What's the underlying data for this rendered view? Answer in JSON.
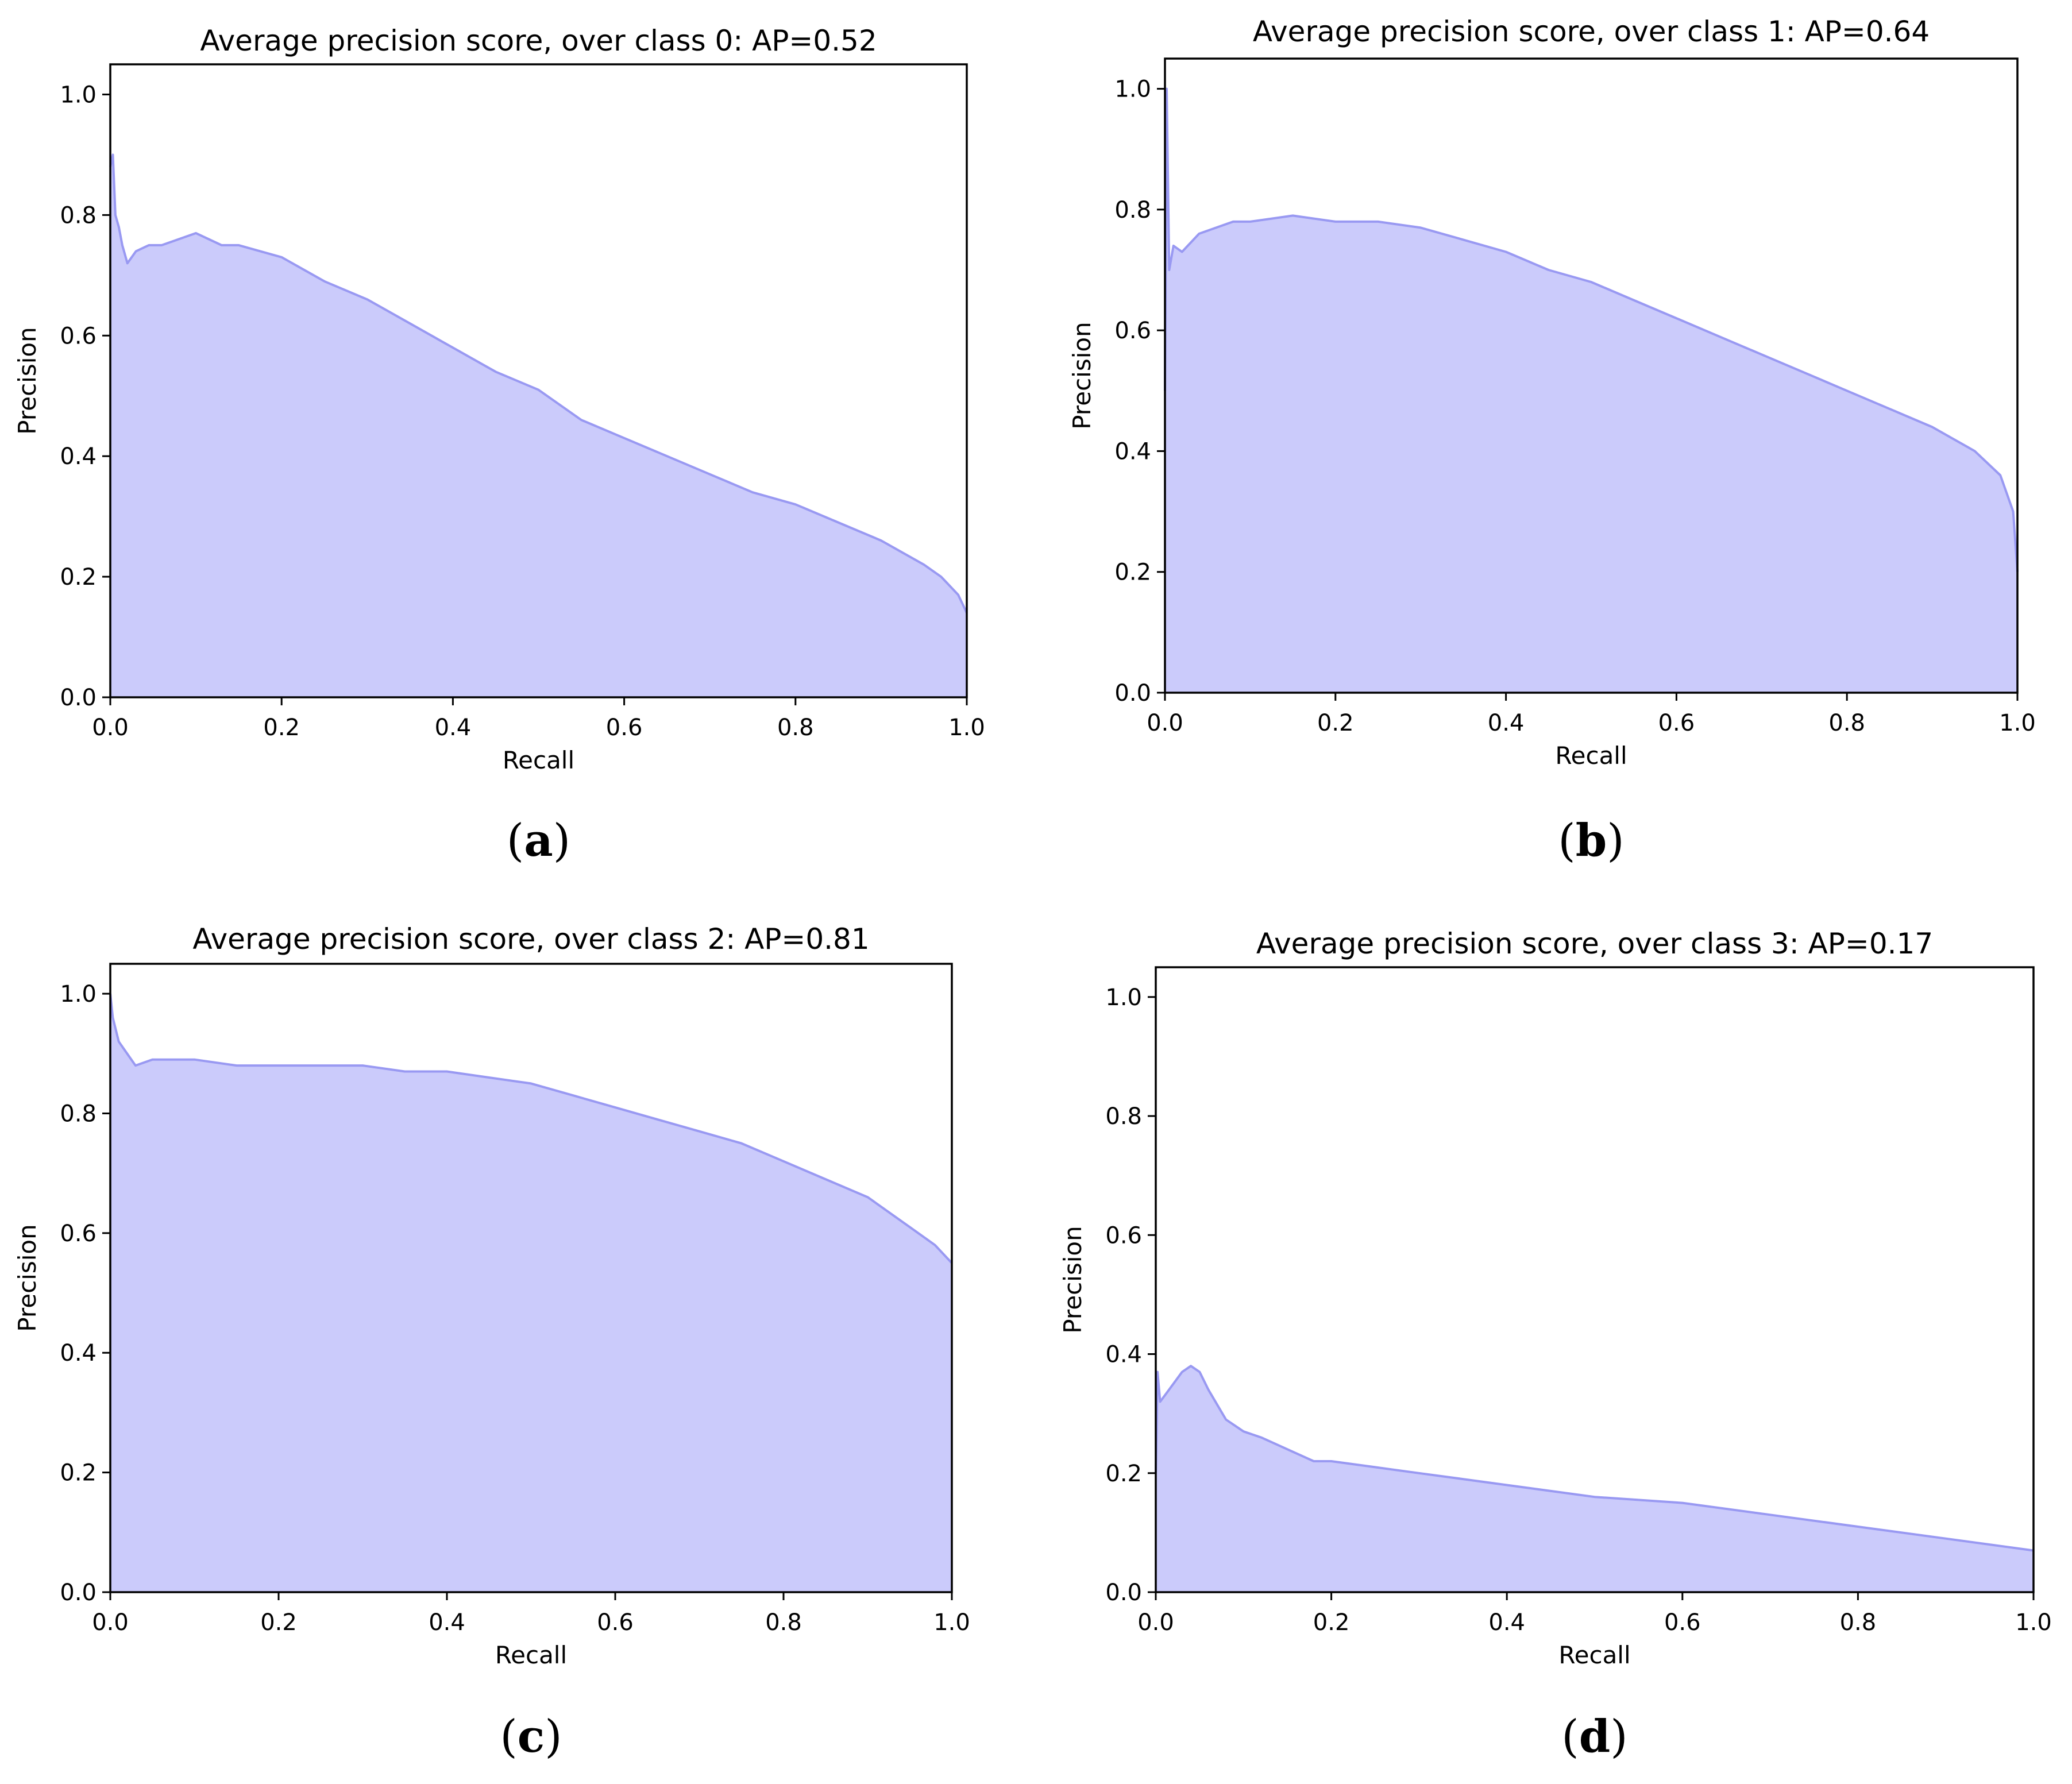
{
  "figure": {
    "colors": {
      "fill": "#cbcbfb",
      "line": "#9999f2",
      "frame": "#000000"
    }
  },
  "chart_data": [
    {
      "type": "area",
      "panel": "a",
      "caption_letter": "a",
      "title": "Average precision score, over class 0: AP=0.52",
      "xlabel": "Recall",
      "ylabel": "Precision",
      "xlim": [
        0,
        1.0
      ],
      "ylim": [
        0,
        1.05
      ],
      "xticks": [
        "0.0",
        "0.2",
        "0.4",
        "0.6",
        "0.8",
        "1.0"
      ],
      "yticks": [
        "0.0",
        "0.2",
        "0.4",
        "0.6",
        "0.8",
        "1.0"
      ],
      "x": [
        0,
        0.003,
        0.006,
        0.01,
        0.014,
        0.02,
        0.03,
        0.045,
        0.06,
        0.08,
        0.1,
        0.13,
        0.15,
        0.2,
        0.25,
        0.3,
        0.35,
        0.4,
        0.45,
        0.5,
        0.55,
        0.6,
        0.65,
        0.7,
        0.75,
        0.8,
        0.85,
        0.9,
        0.95,
        0.97,
        0.99,
        1.0
      ],
      "y": [
        0.88,
        0.9,
        0.8,
        0.78,
        0.75,
        0.72,
        0.74,
        0.75,
        0.75,
        0.76,
        0.77,
        0.75,
        0.75,
        0.73,
        0.69,
        0.66,
        0.62,
        0.58,
        0.54,
        0.51,
        0.46,
        0.43,
        0.4,
        0.37,
        0.34,
        0.32,
        0.29,
        0.26,
        0.22,
        0.2,
        0.17,
        0.14
      ]
    },
    {
      "type": "area",
      "panel": "b",
      "caption_letter": "b",
      "title": "Average precision score, over class 1: AP=0.64",
      "xlabel": "Recall",
      "ylabel": "Precision",
      "xlim": [
        0,
        1.0
      ],
      "ylim": [
        0,
        1.05
      ],
      "xticks": [
        "0.0",
        "0.2",
        "0.4",
        "0.6",
        "0.8",
        "1.0"
      ],
      "yticks": [
        "0.0",
        "0.2",
        "0.4",
        "0.6",
        "0.8",
        "1.0"
      ],
      "x": [
        0,
        0.002,
        0.005,
        0.01,
        0.02,
        0.04,
        0.06,
        0.08,
        0.1,
        0.15,
        0.2,
        0.25,
        0.3,
        0.35,
        0.4,
        0.45,
        0.5,
        0.55,
        0.6,
        0.65,
        0.7,
        0.75,
        0.8,
        0.85,
        0.9,
        0.95,
        0.98,
        0.995,
        1.0
      ],
      "y": [
        0.5,
        1.0,
        0.7,
        0.74,
        0.73,
        0.76,
        0.77,
        0.78,
        0.78,
        0.79,
        0.78,
        0.78,
        0.77,
        0.75,
        0.73,
        0.7,
        0.68,
        0.65,
        0.62,
        0.59,
        0.56,
        0.53,
        0.5,
        0.47,
        0.44,
        0.4,
        0.36,
        0.3,
        0.2
      ]
    },
    {
      "type": "area",
      "panel": "c",
      "caption_letter": "c",
      "title": "Average precision score, over class 2: AP=0.81",
      "xlabel": "Recall",
      "ylabel": "Precision",
      "xlim": [
        0,
        1.0
      ],
      "ylim": [
        0,
        1.05
      ],
      "xticks": [
        "0.0",
        "0.2",
        "0.4",
        "0.6",
        "0.8",
        "1.0"
      ],
      "yticks": [
        "0.0",
        "0.2",
        "0.4",
        "0.6",
        "0.8",
        "1.0"
      ],
      "x": [
        0,
        0.003,
        0.01,
        0.02,
        0.03,
        0.05,
        0.08,
        0.1,
        0.15,
        0.2,
        0.25,
        0.3,
        0.35,
        0.4,
        0.45,
        0.5,
        0.55,
        0.6,
        0.65,
        0.7,
        0.75,
        0.8,
        0.85,
        0.9,
        0.95,
        0.98,
        1.0
      ],
      "y": [
        1.0,
        0.96,
        0.92,
        0.9,
        0.88,
        0.89,
        0.89,
        0.89,
        0.88,
        0.88,
        0.88,
        0.88,
        0.87,
        0.87,
        0.86,
        0.85,
        0.83,
        0.81,
        0.79,
        0.77,
        0.75,
        0.72,
        0.69,
        0.66,
        0.61,
        0.58,
        0.55
      ]
    },
    {
      "type": "area",
      "panel": "d",
      "caption_letter": "d",
      "title": "Average precision score, over class 3: AP=0.17",
      "xlabel": "Recall",
      "ylabel": "Precision",
      "xlim": [
        0,
        1.0
      ],
      "ylim": [
        0,
        1.05
      ],
      "xticks": [
        "0.0",
        "0.2",
        "0.4",
        "0.6",
        "0.8",
        "1.0"
      ],
      "yticks": [
        "0.0",
        "0.2",
        "0.4",
        "0.6",
        "0.8",
        "1.0"
      ],
      "x": [
        0,
        0.002,
        0.005,
        0.01,
        0.02,
        0.03,
        0.04,
        0.05,
        0.06,
        0.08,
        0.1,
        0.12,
        0.15,
        0.18,
        0.2,
        0.25,
        0.3,
        0.35,
        0.4,
        0.5,
        0.6,
        0.7,
        0.8,
        0.9,
        1.0
      ],
      "y": [
        0.2,
        0.37,
        0.32,
        0.33,
        0.35,
        0.37,
        0.38,
        0.37,
        0.34,
        0.29,
        0.27,
        0.26,
        0.24,
        0.22,
        0.22,
        0.21,
        0.2,
        0.19,
        0.18,
        0.16,
        0.15,
        0.13,
        0.11,
        0.09,
        0.07
      ]
    }
  ]
}
